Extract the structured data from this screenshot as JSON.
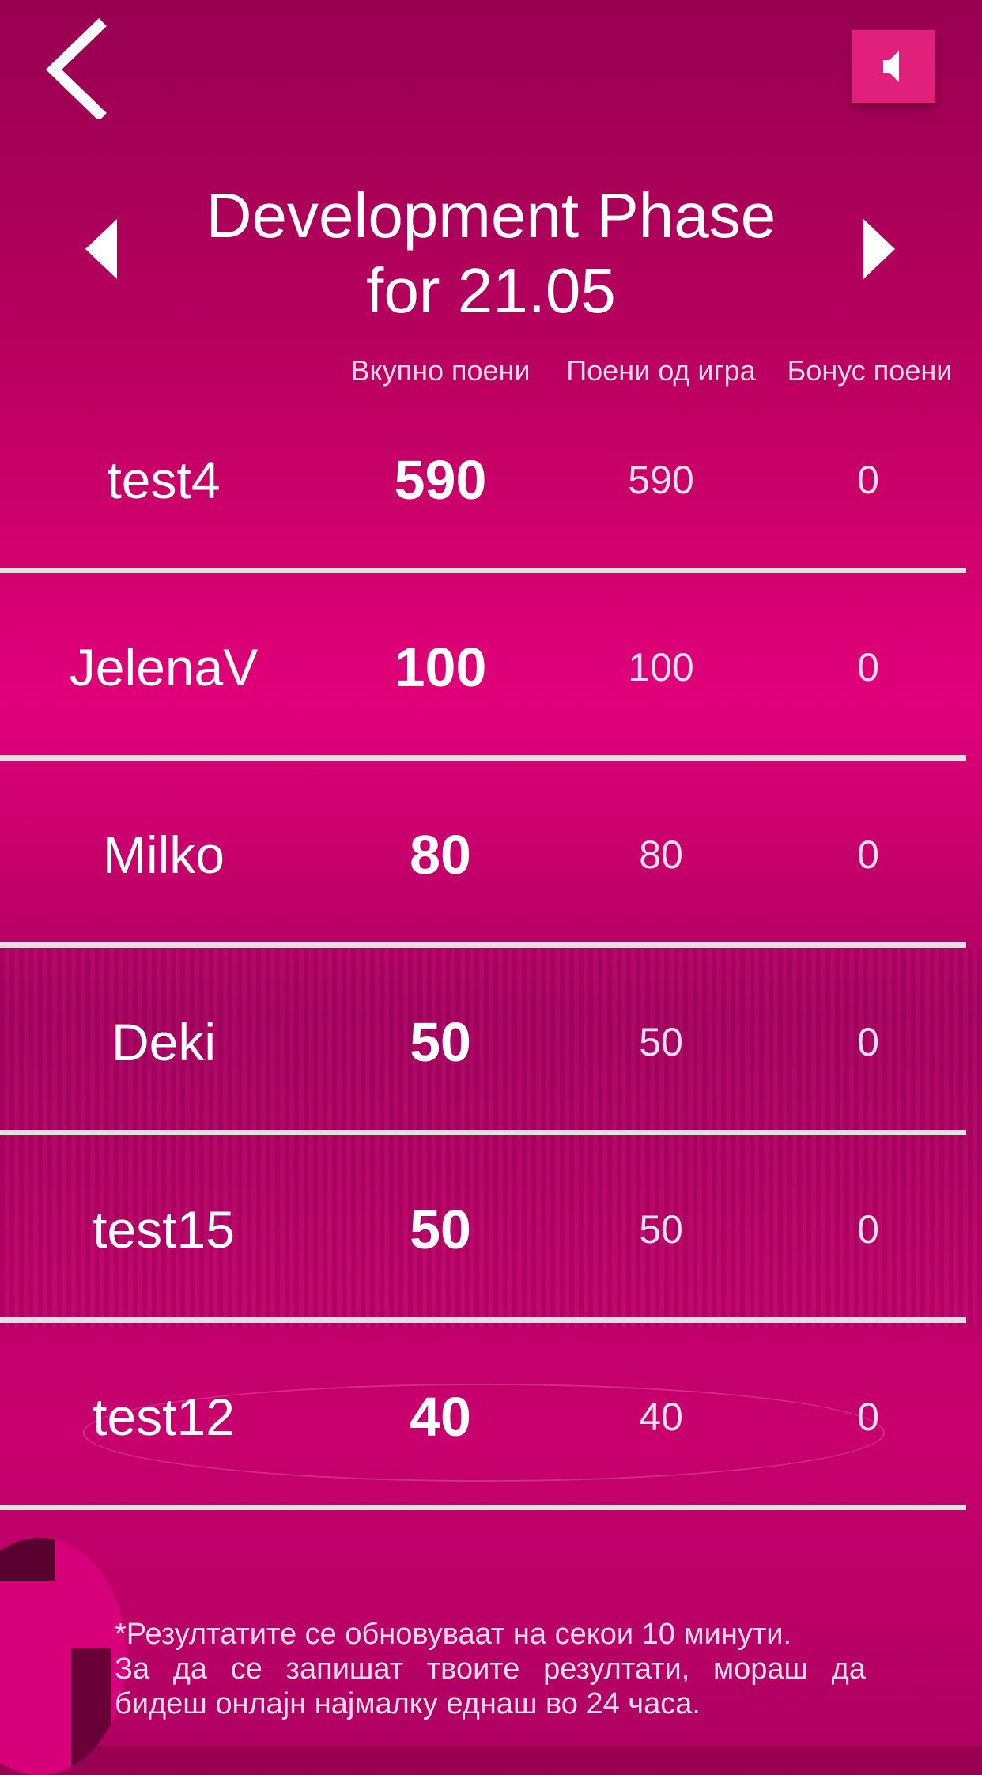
{
  "header": {
    "back_icon": "chevron-left-icon",
    "sound_icon": "speaker-icon",
    "title_line1": "Development Phase",
    "title_line2": "for 21.05",
    "prev_icon": "triangle-left-icon",
    "next_icon": "triangle-right-icon"
  },
  "columns": {
    "total": "Вкупно поени",
    "game": "Поени од игра",
    "bonus": "Бонус поени"
  },
  "rows": [
    {
      "name": "test4",
      "total": "590",
      "game": "590",
      "bonus": "0"
    },
    {
      "name": "JelenaV",
      "total": "100",
      "game": "100",
      "bonus": "0"
    },
    {
      "name": "Milko",
      "total": "80",
      "game": "80",
      "bonus": "0"
    },
    {
      "name": "Deki",
      "total": "50",
      "game": "50",
      "bonus": "0"
    },
    {
      "name": "test15",
      "total": "50",
      "game": "50",
      "bonus": "0"
    },
    {
      "name": "test12",
      "total": "40",
      "game": "40",
      "bonus": "0"
    }
  ],
  "footer": {
    "line1": "*Резултатите се обновуваат на секои 10 минути.",
    "line2": "За да се запишат твоите резултати, мораш да",
    "line3": "бидеш онлајн најмалку еднаш во 24 часа."
  },
  "colors": {
    "accent": "#e0007a",
    "background_dark": "#980050",
    "divider": "#e4e0e2"
  }
}
